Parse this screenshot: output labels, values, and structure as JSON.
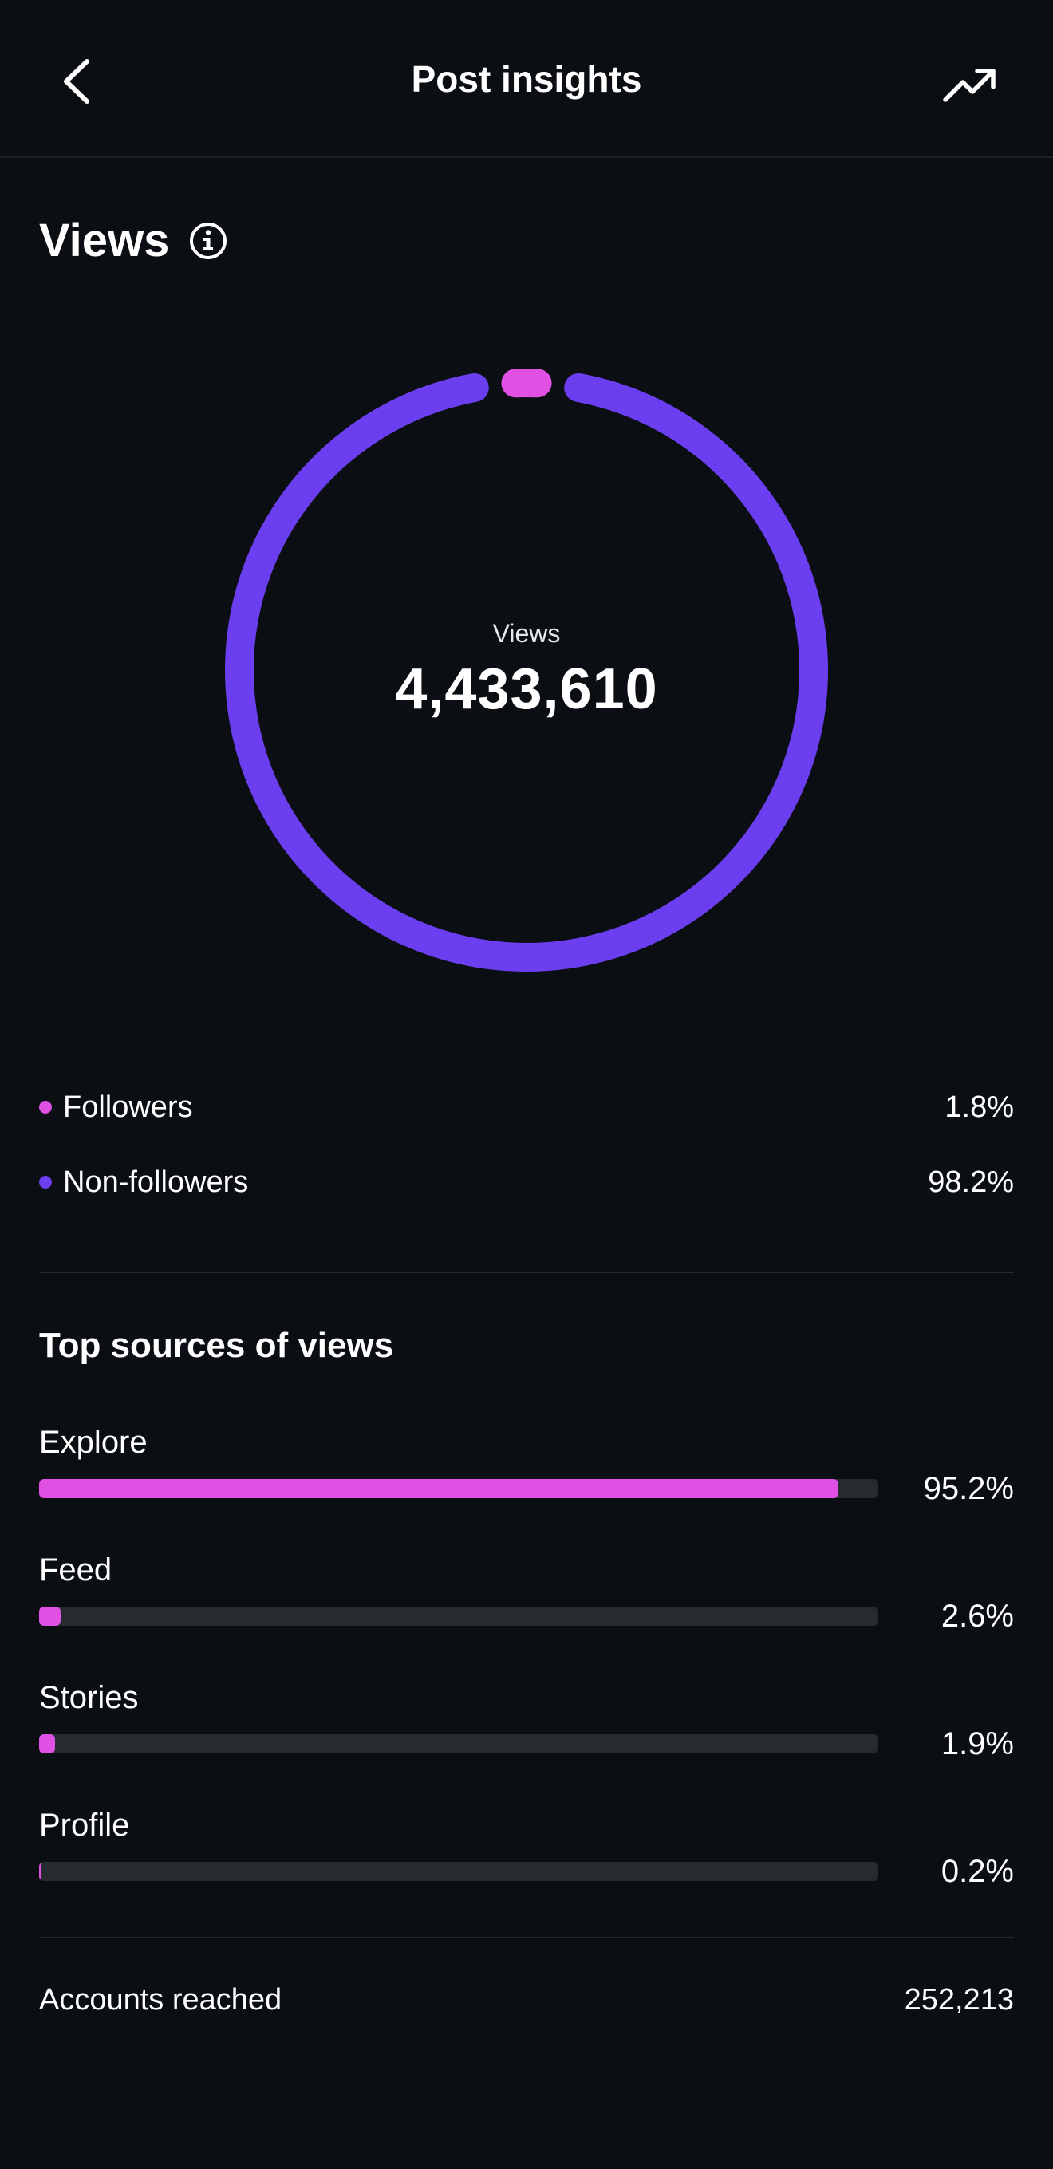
{
  "header": {
    "title": "Post insights",
    "back_icon": "chevron-left-icon",
    "trend_icon": "trending-up-icon"
  },
  "views_section": {
    "title": "Views",
    "info_icon": "info-icon"
  },
  "donut": {
    "center_label": "Views",
    "center_value": "4,433,610"
  },
  "legend": [
    {
      "label": "Followers",
      "value": "1.8%",
      "fraction": 0.018,
      "color": "#e050e3"
    },
    {
      "label": "Non-followers",
      "value": "98.2%",
      "fraction": 0.982,
      "color": "#6b3ef0"
    }
  ],
  "top_sources": {
    "title": "Top sources of views",
    "items": [
      {
        "label": "Explore",
        "value": "95.2%",
        "percent": 95.2
      },
      {
        "label": "Feed",
        "value": "2.6%",
        "percent": 2.6
      },
      {
        "label": "Stories",
        "value": "1.9%",
        "percent": 1.9
      },
      {
        "label": "Profile",
        "value": "0.2%",
        "percent": 0.2
      }
    ]
  },
  "accounts_reached": {
    "label": "Accounts reached",
    "value": "252,213"
  }
}
